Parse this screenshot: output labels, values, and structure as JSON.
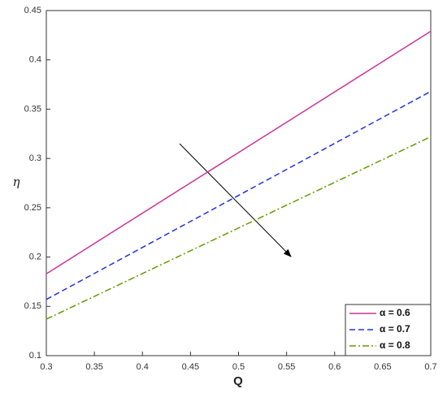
{
  "chart_data": {
    "type": "line",
    "x_label": "Q",
    "y_label": "η",
    "x": [
      0.3,
      0.5,
      0.7
    ],
    "series": [
      {
        "name": "α = 0.6",
        "color": "#cc3399",
        "dash": "solid",
        "values": [
          0.183,
          0.306,
          0.429
        ]
      },
      {
        "name": "α = 0.7",
        "color": "#2233dd",
        "dash": "dashed",
        "values": [
          0.157,
          0.2625,
          0.368
        ]
      },
      {
        "name": "α = 0.8",
        "color": "#669900",
        "dash": "dashdot",
        "values": [
          0.137,
          0.2295,
          0.322
        ]
      }
    ],
    "xlim": [
      0.3,
      0.7
    ],
    "xticks": [
      0.3,
      0.35,
      0.4,
      0.45,
      0.5,
      0.55,
      0.6,
      0.65,
      0.7
    ],
    "ylim": [
      0.1,
      0.45
    ],
    "yticks": [
      0.1,
      0.15,
      0.2,
      0.25,
      0.3,
      0.35,
      0.4,
      0.45
    ],
    "grid": false,
    "legend": "lower right"
  }
}
